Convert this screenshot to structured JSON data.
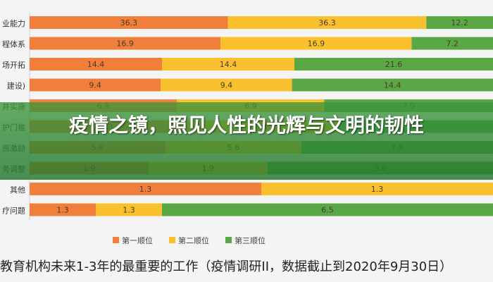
{
  "chart_data": {
    "type": "bar",
    "orientation": "horizontal",
    "stacked": true,
    "categories": [
      "业能力",
      "程体系",
      "场开拓",
      "建设)",
      "并实施",
      "护门槛",
      "感激励",
      "务调整",
      "其他",
      "疗问题"
    ],
    "series": [
      {
        "name": "第一顺位",
        "color": "#ef7f3a",
        "values": [
          36.3,
          16.9,
          14.4,
          9.4,
          6.9,
          6.3,
          5.6,
          1.9,
          1.3,
          1.3
        ]
      },
      {
        "name": "第二顺位",
        "color": "#fbc02d",
        "values": [
          36.3,
          16.9,
          14.4,
          9.4,
          6.9,
          6.3,
          5.6,
          1.9,
          1.3,
          1.3
        ]
      },
      {
        "name": "第三顺位",
        "color": "#5aa845",
        "values": [
          12.2,
          7.2,
          21.6,
          14.4,
          7.9,
          6.3,
          7.9,
          3.6,
          null,
          6.5
        ]
      }
    ],
    "value_labels": [
      [
        "36.3",
        "36.3",
        "12.2"
      ],
      [
        "16.9",
        "16.9",
        "7.2"
      ],
      [
        "14.4",
        "14.4",
        "21.6"
      ],
      [
        "9.4",
        "9.4",
        "14.4"
      ],
      [
        "6.9",
        "6.9",
        "7.9"
      ],
      [
        "6.3",
        "6.3",
        "6.3"
      ],
      [
        "5.6",
        "5.6",
        "7.9"
      ],
      [
        "1.9",
        "1.9",
        "3.6"
      ],
      [
        "1.3",
        "1.3",
        ""
      ],
      [
        "1.3",
        "1.3",
        "6.5"
      ]
    ],
    "legend_position": "bottom",
    "grid": false
  },
  "overlay_title": "疫情之镜，照见人性的光辉与文明的韧性",
  "caption": "教育机构未来1-3年的最重要的工作（疫情调研II，数据截止到2020年9月30日）"
}
